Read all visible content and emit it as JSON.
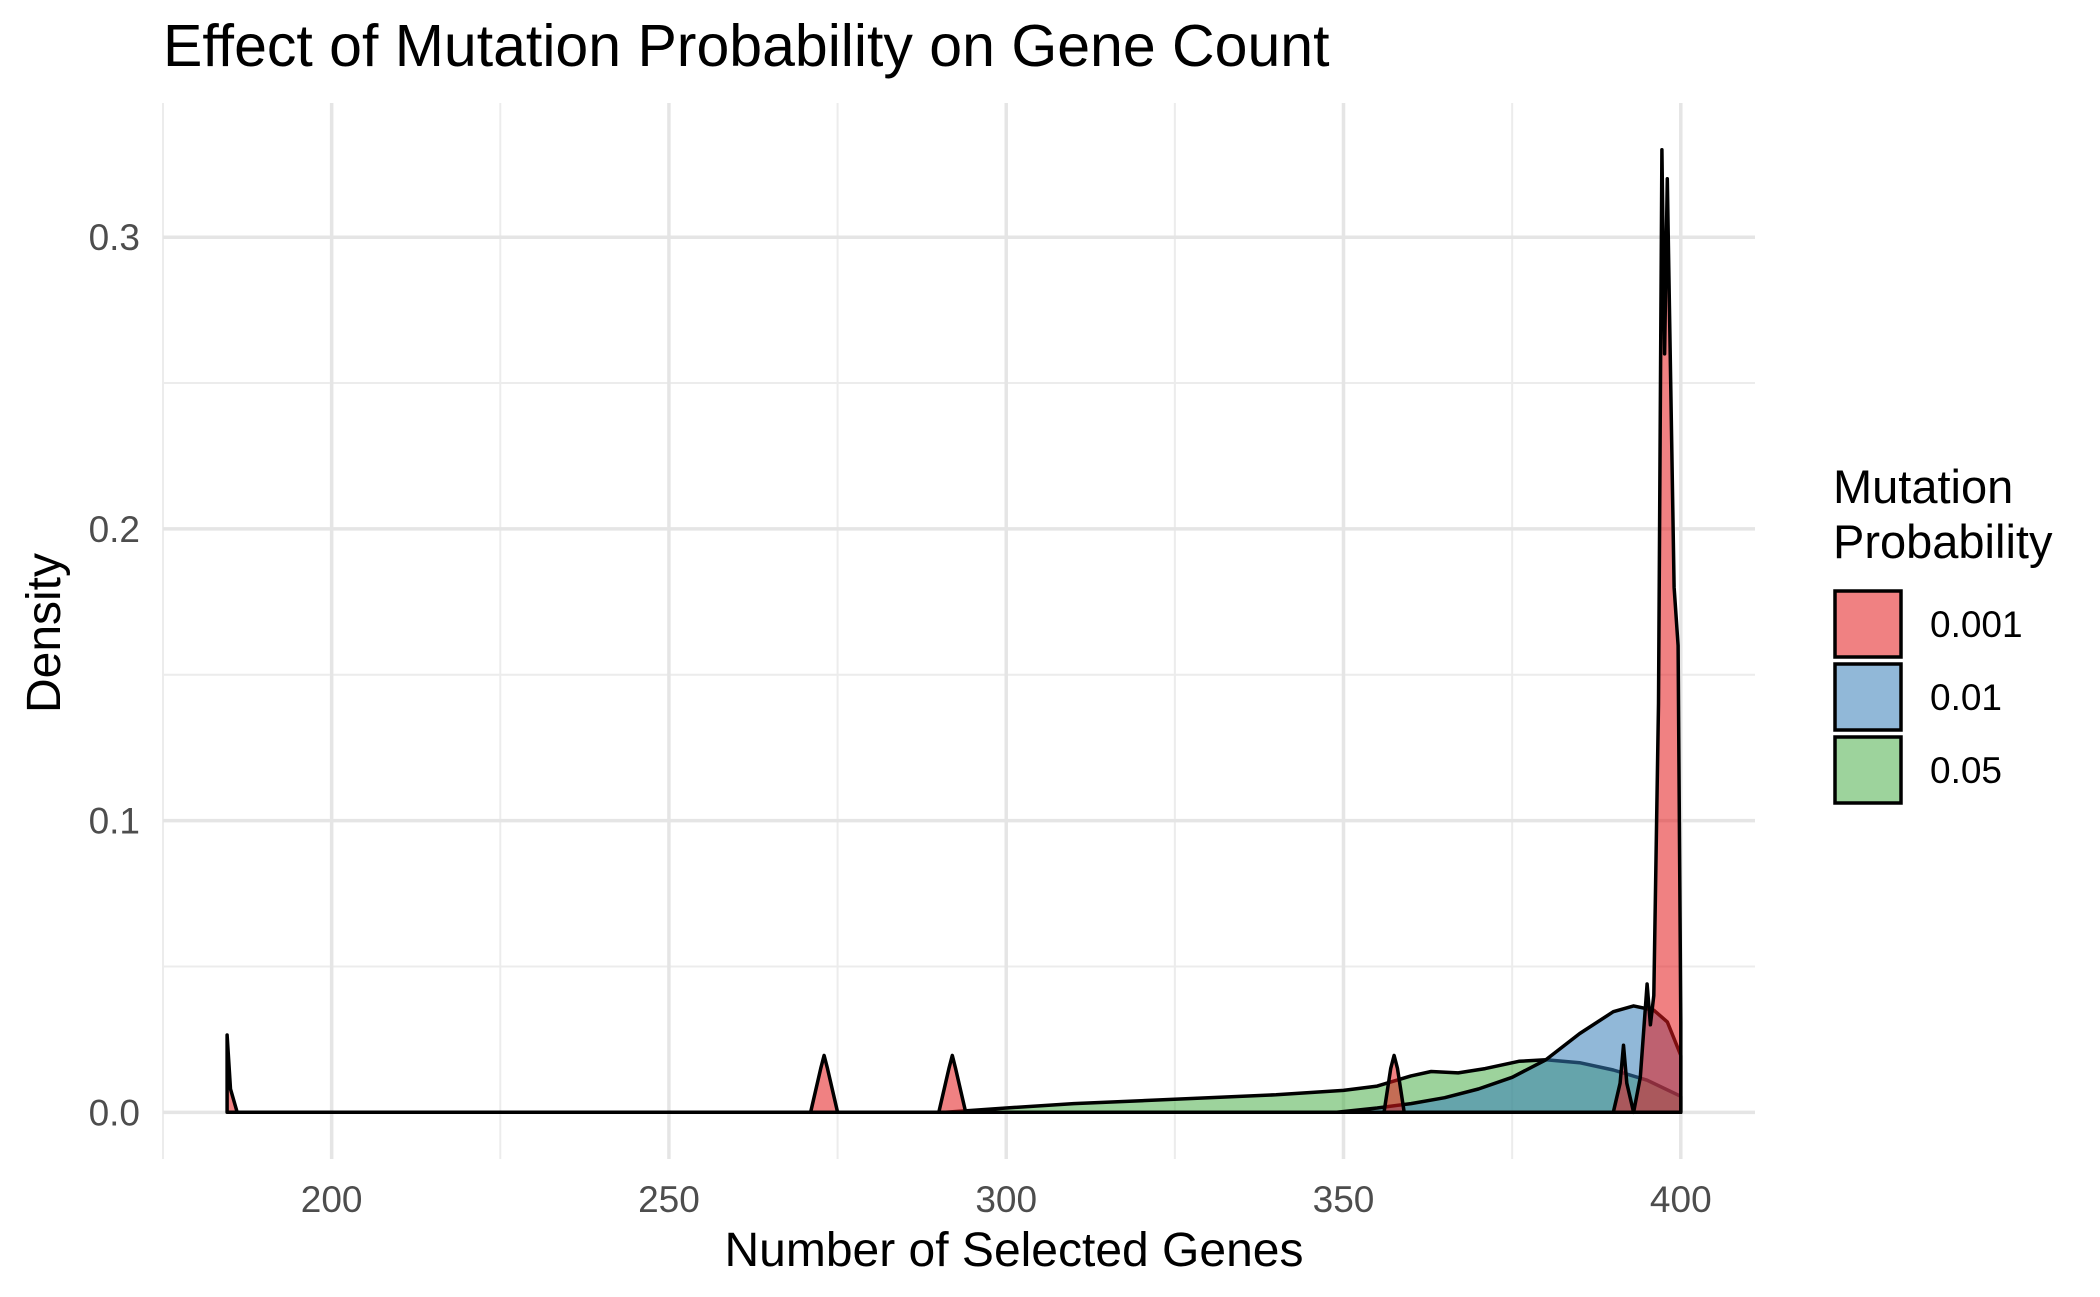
{
  "chart_data": {
    "type": "area",
    "title": "Effect of Mutation Probability on Gene Count",
    "xlabel": "Number of Selected Genes",
    "ylabel": "Density",
    "xlim": [
      175,
      411
    ],
    "ylim": [
      -0.016,
      0.346
    ],
    "x_ticks": [
      200,
      250,
      300,
      350,
      400
    ],
    "y_ticks": [
      0.0,
      0.1,
      0.2,
      0.3
    ],
    "x_tick_labels": [
      "200",
      "250",
      "300",
      "350",
      "400"
    ],
    "y_tick_labels": [
      "0.0",
      "0.1",
      "0.2",
      "0.3"
    ],
    "grid": true,
    "legend": {
      "title": [
        "Mutation",
        "Probability"
      ],
      "position": "right"
    },
    "series": [
      {
        "name": "0.05",
        "color": "#4daf4a",
        "points": [
          [
            291,
            0.0
          ],
          [
            300,
            0.0015
          ],
          [
            310,
            0.003
          ],
          [
            320,
            0.004
          ],
          [
            330,
            0.005
          ],
          [
            340,
            0.006
          ],
          [
            350,
            0.0075
          ],
          [
            355,
            0.009
          ],
          [
            360,
            0.0125
          ],
          [
            363,
            0.014
          ],
          [
            367,
            0.0135
          ],
          [
            371,
            0.015
          ],
          [
            376,
            0.0175
          ],
          [
            380,
            0.018
          ],
          [
            385,
            0.017
          ],
          [
            390,
            0.0145
          ],
          [
            395,
            0.011
          ],
          [
            400,
            0.0055
          ]
        ]
      },
      {
        "name": "0.01",
        "color": "#377eb8",
        "points": [
          [
            349,
            0.0
          ],
          [
            355,
            0.0015
          ],
          [
            360,
            0.003
          ],
          [
            365,
            0.005
          ],
          [
            370,
            0.008
          ],
          [
            375,
            0.012
          ],
          [
            380,
            0.018
          ],
          [
            385,
            0.027
          ],
          [
            390,
            0.0345
          ],
          [
            393,
            0.0365
          ],
          [
            396,
            0.035
          ],
          [
            398,
            0.031
          ],
          [
            400,
            0.0195
          ]
        ]
      },
      {
        "name": "0.001",
        "color": "#e41a1c",
        "points": [
          [
            184.5,
            0.0265
          ],
          [
            185,
            0.008
          ],
          [
            186,
            0.0
          ],
          [
            271,
            0.0
          ],
          [
            272.5,
            0.015
          ],
          [
            273,
            0.0195
          ],
          [
            273.5,
            0.015
          ],
          [
            275,
            0.0
          ],
          [
            290,
            0.0
          ],
          [
            291.5,
            0.015
          ],
          [
            292,
            0.0195
          ],
          [
            292.5,
            0.015
          ],
          [
            294,
            0.0
          ],
          [
            356,
            0.0
          ],
          [
            357,
            0.015
          ],
          [
            357.5,
            0.0195
          ],
          [
            358,
            0.015
          ],
          [
            359,
            0.0
          ],
          [
            390,
            0.0
          ],
          [
            391,
            0.01
          ],
          [
            391.5,
            0.023
          ],
          [
            392,
            0.01
          ],
          [
            393,
            0.0
          ],
          [
            394,
            0.012
          ],
          [
            395,
            0.044
          ],
          [
            395.5,
            0.03
          ],
          [
            396,
            0.04
          ],
          [
            396.7,
            0.14
          ],
          [
            397.2,
            0.33
          ],
          [
            397.6,
            0.26
          ],
          [
            398,
            0.32
          ],
          [
            398.5,
            0.25
          ],
          [
            399,
            0.18
          ],
          [
            399.6,
            0.16
          ],
          [
            400,
            0.031
          ],
          [
            400,
            0.0
          ]
        ]
      }
    ]
  }
}
